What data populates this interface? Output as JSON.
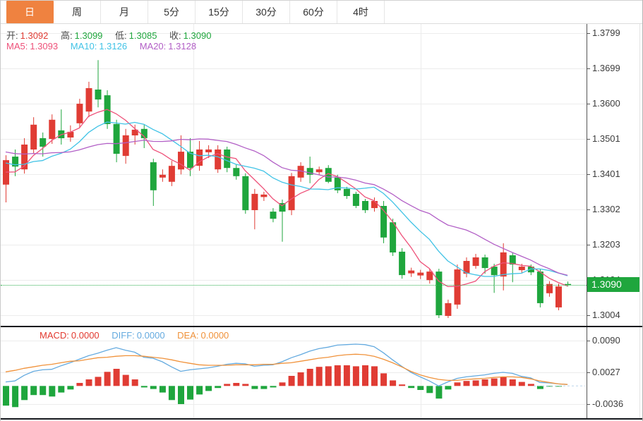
{
  "tabs": {
    "items": [
      {
        "label": "日",
        "active": true
      },
      {
        "label": "周",
        "active": false
      },
      {
        "label": "月",
        "active": false
      },
      {
        "label": "5分",
        "active": false
      },
      {
        "label": "15分",
        "active": false
      },
      {
        "label": "30分",
        "active": false
      },
      {
        "label": "60分",
        "active": false
      },
      {
        "label": "4时",
        "active": false
      }
    ]
  },
  "legend": {
    "open_label": "开:",
    "open_value": "1.3092",
    "high_label": "高:",
    "high_value": "1.3099",
    "low_label": "低:",
    "low_value": "1.3085",
    "close_label": "收:",
    "close_value": "1.3090",
    "ma5_label": "MA5:",
    "ma5_value": "1.3093",
    "ma10_label": "MA10:",
    "ma10_value": "1.3126",
    "ma20_label": "MA20:",
    "ma20_value": "1.3128"
  },
  "macd_legend": {
    "macd_label": "MACD:",
    "macd_value": "0.0000",
    "diff_label": "DIFF:",
    "diff_value": "0.0000",
    "dea_label": "DEA:",
    "dea_value": "0.0000"
  },
  "price_badge": "1.3090",
  "colors": {
    "up": "#e03c34",
    "down": "#1fa63d",
    "ma5": "#ee5179",
    "ma10": "#41c3e6",
    "ma20": "#b25fc6",
    "diff": "#64aadf",
    "dea": "#f0923b",
    "macd_text": "#e23a30",
    "label_text": "#4a4a4a",
    "badge_bg": "#1fa63d",
    "dotted_line": "#2fae4e",
    "tab_active_bg": "#ef8240",
    "zero_dash": "#b9d3ea"
  },
  "chart_data": [
    {
      "type": "candlestick",
      "title": "",
      "timeframe_selected": "日",
      "ohlc_display": {
        "open": 1.3092,
        "high": 1.3099,
        "low": 1.3085,
        "close": 1.309
      },
      "ma_current": {
        "MA5": 1.3093,
        "MA10": 1.3126,
        "MA20": 1.3128
      },
      "current_price": 1.309,
      "y_ticks": [
        1.3799,
        1.3699,
        1.36,
        1.3501,
        1.3401,
        1.3302,
        1.3203,
        1.3104,
        1.3004
      ],
      "y_range": [
        1.2975,
        1.3825
      ],
      "grid": true,
      "legend_position": "top-left",
      "candles": [
        [
          1.3372,
          1.3455,
          1.3322,
          1.3441
        ],
        [
          1.3451,
          1.3471,
          1.3396,
          1.3423
        ],
        [
          1.3415,
          1.3503,
          1.3403,
          1.3485
        ],
        [
          1.3471,
          1.3562,
          1.3459,
          1.3541
        ],
        [
          1.3503,
          1.3519,
          1.3451,
          1.3479
        ],
        [
          1.3501,
          1.357,
          1.3487,
          1.3555
        ],
        [
          1.3525,
          1.3584,
          1.3485,
          1.3503
        ],
        [
          1.3505,
          1.3539,
          1.3493,
          1.3521
        ],
        [
          1.3545,
          1.3614,
          1.3531,
          1.36
        ],
        [
          1.3578,
          1.3662,
          1.3562,
          1.3644
        ],
        [
          1.364,
          1.3723,
          1.359,
          1.3612
        ],
        [
          1.3624,
          1.3638,
          1.3529,
          1.3543
        ],
        [
          1.3543,
          1.3555,
          1.3435,
          1.3459
        ],
        [
          1.3453,
          1.3529,
          1.3431,
          1.3511
        ],
        [
          1.3511,
          1.3541,
          1.3485,
          1.3527
        ],
        [
          1.3529,
          1.3541,
          1.3475,
          1.3503
        ],
        [
          1.3435,
          1.3445,
          1.3312,
          1.3356
        ],
        [
          1.3392,
          1.3415,
          1.338,
          1.34
        ],
        [
          1.338,
          1.3439,
          1.3368,
          1.3425
        ],
        [
          1.3415,
          1.3511,
          1.3401,
          1.3465
        ],
        [
          1.3465,
          1.3503,
          1.3396,
          1.3419
        ],
        [
          1.3425,
          1.3495,
          1.3411,
          1.3471
        ],
        [
          1.3463,
          1.3483,
          1.3447,
          1.3471
        ],
        [
          1.3415,
          1.3483,
          1.3405,
          1.3471
        ],
        [
          1.3471,
          1.3479,
          1.3407,
          1.3419
        ],
        [
          1.3419,
          1.3429,
          1.3386,
          1.3396
        ],
        [
          1.3396,
          1.3404,
          1.329,
          1.33
        ],
        [
          1.33,
          1.336,
          1.3246,
          1.3346
        ],
        [
          1.3337,
          1.3352,
          1.3326,
          1.3344
        ],
        [
          1.3296,
          1.3306,
          1.3266,
          1.3276
        ],
        [
          1.332,
          1.333,
          1.3211,
          1.3296
        ],
        [
          1.33,
          1.3405,
          1.3286,
          1.3396
        ],
        [
          1.3392,
          1.3435,
          1.338,
          1.3425
        ],
        [
          1.3419,
          1.3451,
          1.3376,
          1.34
        ],
        [
          1.3407,
          1.3423,
          1.3399,
          1.3415
        ],
        [
          1.3419,
          1.3427,
          1.3376,
          1.338
        ],
        [
          1.3392,
          1.34,
          1.3348,
          1.3356
        ],
        [
          1.336,
          1.3366,
          1.3332,
          1.334
        ],
        [
          1.3346,
          1.3352,
          1.3306,
          1.3312
        ],
        [
          1.3326,
          1.3332,
          1.3292,
          1.33
        ],
        [
          1.3306,
          1.3336,
          1.3296,
          1.3326
        ],
        [
          1.3312,
          1.3326,
          1.3207,
          1.3223
        ],
        [
          1.3266,
          1.3276,
          1.3171,
          1.3181
        ],
        [
          1.3183,
          1.3193,
          1.3107,
          1.3117
        ],
        [
          1.3122,
          1.3138,
          1.3112,
          1.313
        ],
        [
          1.3116,
          1.3132,
          1.3106,
          1.3124
        ],
        [
          1.3103,
          1.3135,
          1.3093,
          1.3127
        ],
        [
          1.3127,
          1.3135,
          1.2996,
          1.3004
        ],
        [
          1.3002,
          1.3048,
          1.2996,
          1.3038
        ],
        [
          1.3034,
          1.3147,
          1.3022,
          1.3133
        ],
        [
          1.3121,
          1.3167,
          1.3111,
          1.3157
        ],
        [
          1.3143,
          1.3177,
          1.3135,
          1.3167
        ],
        [
          1.3167,
          1.3175,
          1.3121,
          1.3137
        ],
        [
          1.3141,
          1.3149,
          1.3067,
          1.3117
        ],
        [
          1.3113,
          1.3207,
          1.3074,
          1.3181
        ],
        [
          1.3173,
          1.3181,
          1.3097,
          1.3147
        ],
        [
          1.3131,
          1.3149,
          1.3123,
          1.3141
        ],
        [
          1.3141,
          1.3147,
          1.3117,
          1.3125
        ],
        [
          1.3127,
          1.3135,
          1.3026,
          1.3038
        ],
        [
          1.3066,
          1.31,
          1.3056,
          1.3092
        ],
        [
          1.3026,
          1.3093,
          1.3018,
          1.3085
        ],
        [
          1.3092,
          1.3099,
          1.3085,
          1.309
        ]
      ],
      "ma_periods": [
        5,
        10,
        20
      ],
      "ma_seed_closes": [
        1.352,
        1.3515,
        1.351,
        1.3505,
        1.35,
        1.3495,
        1.349,
        1.3488,
        1.3485,
        1.3482,
        1.348,
        1.3475,
        1.347,
        1.3465,
        1.345,
        1.3435,
        1.342,
        1.3405,
        1.339,
        1.338
      ]
    },
    {
      "type": "bar",
      "subtype": "macd-histogram-with-lines",
      "y_ticks": [
        0.009,
        0.0027,
        -0.0036
      ],
      "current": {
        "MACD": 0.0,
        "DIFF": 0.0,
        "DEA": 0.0
      },
      "macd": [
        -0.0039,
        -0.0042,
        -0.0028,
        -0.0018,
        -0.0018,
        -0.0021,
        -0.0013,
        -0.0007,
        0.0006,
        0.0013,
        0.0018,
        0.0028,
        0.0034,
        0.0022,
        0.0013,
        -0.0003,
        -0.0006,
        -0.0013,
        -0.0028,
        -0.0036,
        -0.0027,
        -0.0017,
        -0.001,
        -0.0004,
        0.0004,
        0.0006,
        0.0004,
        -0.0006,
        -0.0006,
        -0.0003,
        0.0007,
        0.002,
        0.0027,
        0.0034,
        0.0038,
        0.0039,
        0.0041,
        0.0041,
        0.0039,
        0.0041,
        0.0039,
        0.0025,
        0.0011,
        0.0003,
        -0.0004,
        -0.0008,
        -0.0014,
        -0.0025,
        -0.0007,
        0.0007,
        0.001,
        0.0011,
        0.0013,
        0.0015,
        0.0018,
        0.0013,
        0.0008,
        0.0004,
        -0.0006,
        -0.0001,
        -0.0001,
        0.0
      ],
      "diff": [
        0.0008,
        0.001,
        0.0021,
        0.0029,
        0.0032,
        0.0033,
        0.004,
        0.0046,
        0.0053,
        0.006,
        0.0065,
        0.0071,
        0.0076,
        0.0071,
        0.0067,
        0.0057,
        0.0055,
        0.0048,
        0.0038,
        0.0029,
        0.0032,
        0.0034,
        0.0036,
        0.0039,
        0.0043,
        0.0045,
        0.0044,
        0.0039,
        0.0041,
        0.0042,
        0.0048,
        0.0056,
        0.0062,
        0.0069,
        0.0074,
        0.0077,
        0.0081,
        0.0082,
        0.0083,
        0.0082,
        0.0078,
        0.0066,
        0.0052,
        0.0039,
        0.0027,
        0.0018,
        0.001,
        0.0,
        0.0008,
        0.0015,
        0.0018,
        0.002,
        0.0022,
        0.0025,
        0.0027,
        0.0025,
        0.0019,
        0.0016,
        0.0007,
        0.0006,
        0.0004,
        0.0003
      ],
      "dea": [
        0.0028,
        0.0031,
        0.0035,
        0.0038,
        0.0041,
        0.0043,
        0.0046,
        0.0049,
        0.005,
        0.0053,
        0.0056,
        0.0057,
        0.0059,
        0.006,
        0.006,
        0.0059,
        0.0057,
        0.0055,
        0.0052,
        0.0048,
        0.0045,
        0.0042,
        0.0041,
        0.0041,
        0.0041,
        0.0042,
        0.0042,
        0.0042,
        0.0043,
        0.0043,
        0.0045,
        0.0046,
        0.0049,
        0.0052,
        0.0055,
        0.0057,
        0.006,
        0.0062,
        0.0063,
        0.0062,
        0.0059,
        0.0053,
        0.0046,
        0.0038,
        0.0029,
        0.0022,
        0.0017,
        0.0013,
        0.0011,
        0.0011,
        0.0013,
        0.0014,
        0.0015,
        0.0017,
        0.0018,
        0.0018,
        0.0017,
        0.0014,
        0.001,
        0.0007,
        0.0004,
        0.0003
      ]
    }
  ]
}
